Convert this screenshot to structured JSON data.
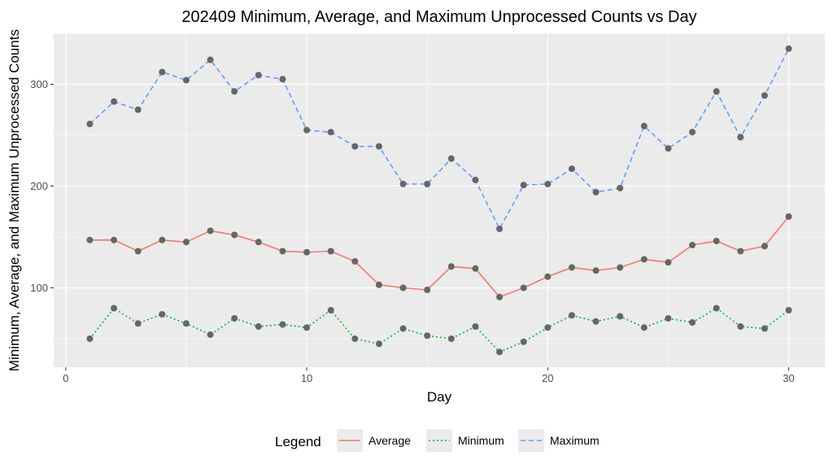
{
  "chart_data": {
    "type": "line",
    "title": "202409 Minimum, Average, and Maximum Unprocessed Counts vs Day",
    "xlabel": "Day",
    "ylabel": "Minimum, Average, and Maximum Unprocessed Counts",
    "xlim": [
      -0.5,
      31.5
    ],
    "ylim": [
      22,
      350
    ],
    "x_ticks": [
      0,
      10,
      20,
      30
    ],
    "y_ticks": [
      100,
      200,
      300
    ],
    "grid": true,
    "legend": {
      "title": "Legend",
      "position": "bottom",
      "entries": [
        "Average",
        "Minimum",
        "Maximum"
      ]
    },
    "x": [
      1,
      2,
      3,
      4,
      5,
      6,
      7,
      8,
      9,
      10,
      11,
      12,
      13,
      14,
      15,
      16,
      17,
      18,
      19,
      20,
      21,
      22,
      23,
      24,
      25,
      26,
      27,
      28,
      29,
      30
    ],
    "series": [
      {
        "name": "Average",
        "color": "#F8766D",
        "dash": "solid",
        "values": [
          147,
          147,
          136,
          147,
          145,
          156,
          152,
          145,
          136,
          135,
          136,
          126,
          103,
          100,
          98,
          121,
          119,
          91,
          100,
          111,
          120,
          117,
          120,
          128,
          125,
          142,
          146,
          136,
          141,
          170
        ]
      },
      {
        "name": "Minimum",
        "color": "#00BA38",
        "dash": "dotted",
        "values": [
          50,
          80,
          65,
          74,
          65,
          54,
          70,
          62,
          64,
          61,
          78,
          50,
          45,
          60,
          53,
          50,
          62,
          37,
          47,
          61,
          73,
          67,
          72,
          61,
          70,
          66,
          80,
          62,
          60,
          78
        ]
      },
      {
        "name": "Maximum",
        "color": "#619CFF",
        "dash": "dashed",
        "values": [
          261,
          283,
          275,
          312,
          304,
          324,
          293,
          309,
          305,
          255,
          253,
          239,
          239,
          202,
          202,
          227,
          206,
          158,
          201,
          202,
          217,
          194,
          198,
          259,
          237,
          253,
          293,
          248,
          289,
          335
        ]
      }
    ]
  }
}
